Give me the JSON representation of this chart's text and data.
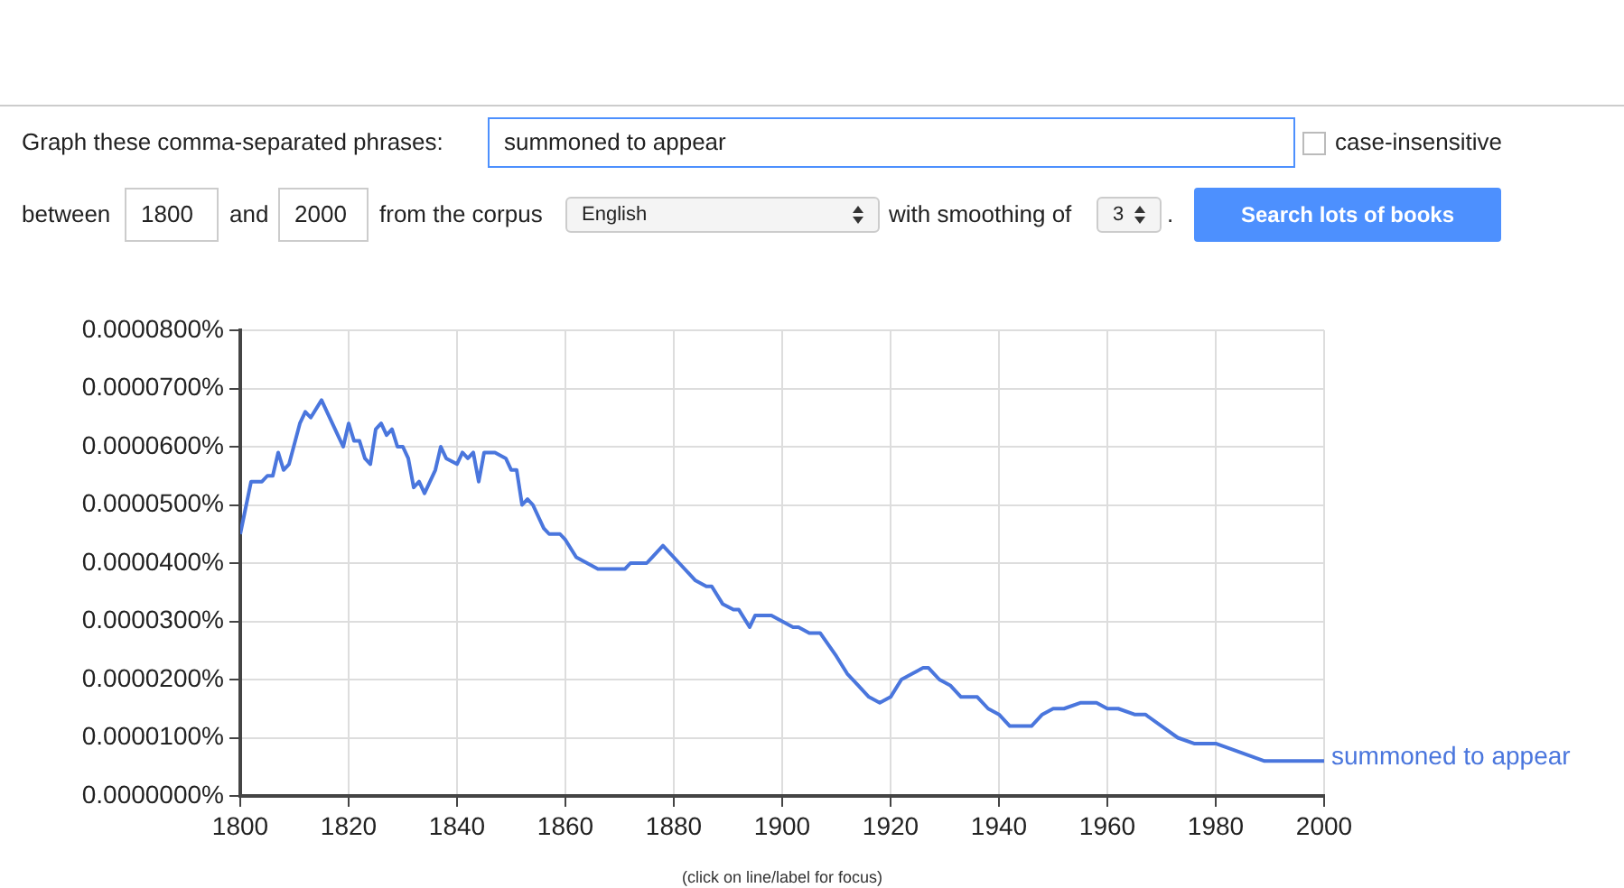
{
  "chart_data": {
    "type": "line",
    "annotations": [
      "Graph these comma-separated phrases:",
      "summoned to appear",
      "case-insensitive",
      "between",
      "1800",
      "and",
      "2000",
      "from the corpus",
      "English",
      "with smoothing of",
      "3",
      ".",
      "Search lots of books",
      "(click on line/label for focus)"
    ],
    "series": [
      {
        "name": "summoned to appear",
        "color": "#4a76dd",
        "x": [
          1800,
          1802,
          1804,
          1805,
          1806,
          1807,
          1808,
          1809,
          1811,
          1812,
          1813,
          1815,
          1816,
          1818,
          1819,
          1820,
          1821,
          1822,
          1823,
          1824,
          1825,
          1826,
          1827,
          1828,
          1829,
          1830,
          1831,
          1832,
          1833,
          1834,
          1836,
          1837,
          1838,
          1840,
          1841,
          1842,
          1843,
          1844,
          1845,
          1847,
          1849,
          1850,
          1851,
          1852,
          1853,
          1854,
          1856,
          1857,
          1859,
          1860,
          1862,
          1864,
          1866,
          1868,
          1870,
          1871,
          1872,
          1875,
          1876,
          1878,
          1879,
          1881,
          1883,
          1884,
          1886,
          1887,
          1889,
          1891,
          1892,
          1894,
          1895,
          1896,
          1898,
          1900,
          1902,
          1903,
          1905,
          1907,
          1910,
          1912,
          1914,
          1916,
          1918,
          1920,
          1922,
          1924,
          1926,
          1927,
          1929,
          1931,
          1933,
          1936,
          1938,
          1940,
          1942,
          1943,
          1944,
          1946,
          1948,
          1950,
          1952,
          1955,
          1958,
          1960,
          1962,
          1965,
          1967,
          1970,
          1973,
          1976,
          1978,
          1980,
          1983,
          1986,
          1989,
          1992,
          1996,
          2000
        ],
        "values": [
          4.5e-05,
          5.4e-05,
          5.4e-05,
          5.5e-05,
          5.5e-05,
          5.9e-05,
          5.6e-05,
          5.7e-05,
          6.4e-05,
          6.6e-05,
          6.5e-05,
          6.8e-05,
          6.6e-05,
          6.2e-05,
          6e-05,
          6.4e-05,
          6.1e-05,
          6.1e-05,
          5.8e-05,
          5.7e-05,
          6.3e-05,
          6.4e-05,
          6.2e-05,
          6.3e-05,
          6e-05,
          6e-05,
          5.8e-05,
          5.3e-05,
          5.4e-05,
          5.2e-05,
          5.6e-05,
          6e-05,
          5.8e-05,
          5.7e-05,
          5.9e-05,
          5.8e-05,
          5.9e-05,
          5.4e-05,
          5.9e-05,
          5.9e-05,
          5.8e-05,
          5.6e-05,
          5.6e-05,
          5e-05,
          5.1e-05,
          5e-05,
          4.6e-05,
          4.5e-05,
          4.5e-05,
          4.4e-05,
          4.1e-05,
          4e-05,
          3.9e-05,
          3.9e-05,
          3.9e-05,
          3.9e-05,
          4e-05,
          4e-05,
          4.1e-05,
          4.3e-05,
          4.2e-05,
          4e-05,
          3.8e-05,
          3.7e-05,
          3.6e-05,
          3.6e-05,
          3.3e-05,
          3.2e-05,
          3.2e-05,
          2.9e-05,
          3.1e-05,
          3.1e-05,
          3.1e-05,
          3e-05,
          2.9e-05,
          2.9e-05,
          2.8e-05,
          2.8e-05,
          2.4e-05,
          2.1e-05,
          1.9e-05,
          1.7e-05,
          1.6e-05,
          1.7e-05,
          2e-05,
          2.1e-05,
          2.2e-05,
          2.2e-05,
          2e-05,
          1.9e-05,
          1.7e-05,
          1.7e-05,
          1.5e-05,
          1.4e-05,
          1.2e-05,
          1.2e-05,
          1.2e-05,
          1.2e-05,
          1.4e-05,
          1.5e-05,
          1.5e-05,
          1.6e-05,
          1.6e-05,
          1.5e-05,
          1.5e-05,
          1.4e-05,
          1.4e-05,
          1.2e-05,
          1e-05,
          9e-06,
          9e-06,
          9e-06,
          8e-06,
          7e-06,
          6e-06,
          6e-06,
          6e-06,
          6e-06
        ]
      }
    ],
    "xlim": [
      1800,
      2000
    ],
    "xticks": [
      1800,
      1820,
      1840,
      1860,
      1880,
      1900,
      1920,
      1940,
      1960,
      1980,
      2000
    ],
    "ylim": [
      0,
      8e-05
    ],
    "yticks": [
      {
        "value": 0,
        "label": "0.0000000%"
      },
      {
        "value": 1e-05,
        "label": "0.0000100%"
      },
      {
        "value": 2e-05,
        "label": "0.0000200%"
      },
      {
        "value": 3e-05,
        "label": "0.0000300%"
      },
      {
        "value": 4e-05,
        "label": "0.0000400%"
      },
      {
        "value": 5e-05,
        "label": "0.0000500%"
      },
      {
        "value": 6e-05,
        "label": "0.0000600%"
      },
      {
        "value": 7e-05,
        "label": "0.0000700%"
      },
      {
        "value": 8e-05,
        "label": "0.0000800%"
      }
    ],
    "grid": true,
    "legend": false,
    "marker": "none",
    "line_style": "solid"
  }
}
